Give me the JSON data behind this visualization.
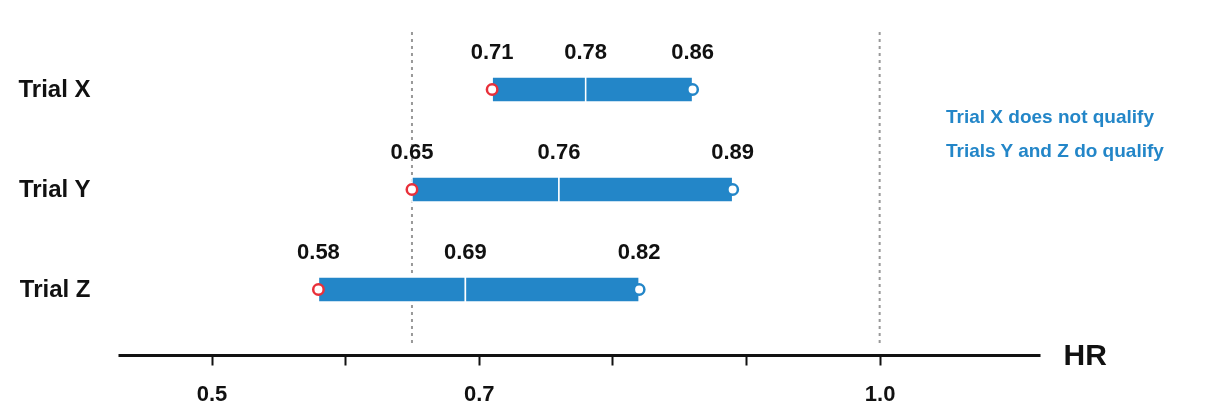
{
  "chart_data": {
    "type": "bar",
    "orientation": "horizontal",
    "xlabel": "HR",
    "categories": [
      "Trial X",
      "Trial Y",
      "Trial Z"
    ],
    "series": [
      {
        "color": "#2386c8",
        "base": [
          0.71,
          0.65,
          0.58
        ],
        "values": [
          0.07,
          0.11,
          0.11
        ]
      },
      {
        "color": "#2386c8",
        "base": [
          0.78,
          0.76,
          0.69
        ],
        "values": [
          0.08,
          0.13,
          0.13
        ]
      },
      {
        "type": "scatter",
        "color": "#e8303a",
        "values": [
          0.71,
          0.65,
          0.58
        ],
        "value_labels": [
          "0.71",
          "0.65",
          "0.58"
        ]
      },
      {
        "type": "scatter",
        "color": "#2386c8",
        "values": [
          0.86,
          0.89,
          0.82
        ],
        "value_labels": [
          "0.86",
          "0.89",
          "0.82"
        ]
      }
    ],
    "xlim": [
      0.43,
      1.12
    ],
    "xticks": [
      0.5,
      {
        "value": 0.6,
        "label": null
      },
      0.7,
      {
        "value": 0.8,
        "label": null
      },
      {
        "value": 0.9,
        "label": null
      },
      {
        "value": 1.0,
        "label": "1.0"
      }
    ],
    "ref_lines": [
      {
        "axis": "x",
        "value": 0.65,
        "color": "#999999",
        "line_style": "dotted"
      },
      {
        "axis": "x",
        "value": 1.0,
        "color": "#999999",
        "line_style": "dotted"
      }
    ],
    "annotations": [
      {
        "text": "0.78",
        "x": 0.78,
        "y": "Trial X"
      },
      {
        "text": "0.76",
        "x": 0.76,
        "y": "Trial Y"
      },
      {
        "text": "0.69",
        "x": 0.69,
        "y": "Trial Z"
      },
      "Trial X does not qualify",
      "Trials Y and Z do qualify"
    ],
    "marker": "circle"
  }
}
